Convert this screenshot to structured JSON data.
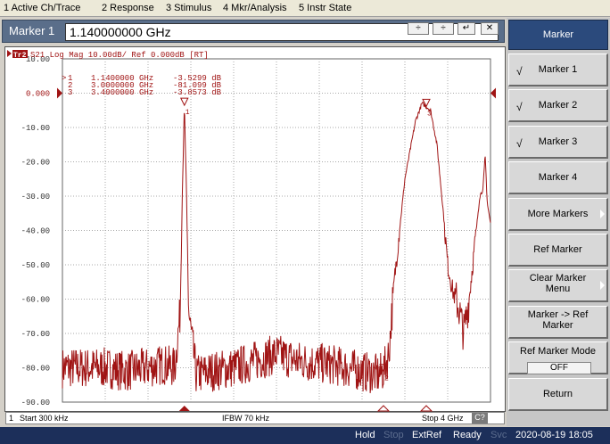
{
  "menu": [
    {
      "label": "1 Active Ch/Trace"
    },
    {
      "label": "2 Response"
    },
    {
      "label": "3 Stimulus"
    },
    {
      "label": "4 Mkr/Analysis"
    },
    {
      "label": "5 Instr State"
    }
  ],
  "entry": {
    "label": "Marker 1",
    "value": "1.140000000 GHz",
    "buttons": [
      "÷",
      "÷",
      "↵",
      "✕"
    ]
  },
  "trace": {
    "badge": "Tr2",
    "header": "S21 Log Mag 10.00dB/ Ref 0.000dB [RT]",
    "ref_label": "0.000"
  },
  "y_ticks": [
    "10.00",
    "0.000",
    "-10.00",
    "-20.00",
    "-30.00",
    "-40.00",
    "-50.00",
    "-60.00",
    "-70.00",
    "-80.00",
    "-90.00"
  ],
  "markers": [
    {
      "id": "1",
      "active": true,
      "freq": "1.1400000 GHz",
      "value": "-3.5299 dB"
    },
    {
      "id": "2",
      "active": false,
      "freq": "3.0000000 GHz",
      "value": "-81.099 dB"
    },
    {
      "id": "3",
      "active": false,
      "freq": "3.4000000 GHz",
      "value": "-3.8573 dB"
    }
  ],
  "footer": {
    "channel": "1",
    "start": "Start 300 kHz",
    "ifbw": "IFBW 70 kHz",
    "stop": "Stop 4 GHz",
    "badge": "C?"
  },
  "softkeys": {
    "title": "Marker",
    "items": [
      {
        "label": "Marker 1",
        "checked": true
      },
      {
        "label": "Marker 2",
        "checked": true
      },
      {
        "label": "Marker 3",
        "checked": true
      },
      {
        "label": "Marker 4",
        "checked": false
      },
      {
        "label": "More Markers",
        "submenu": true
      },
      {
        "label": "Ref Marker"
      },
      {
        "label": "Clear Marker Menu",
        "submenu": true
      },
      {
        "label": "Marker -> Ref Marker"
      },
      {
        "label": "Ref Marker Mode",
        "state": "OFF"
      },
      {
        "label": "Return"
      }
    ]
  },
  "status": {
    "items": [
      {
        "text": "Hold",
        "color": "#ffffff"
      },
      {
        "text": "Stop",
        "color": "#5c6d8e"
      },
      {
        "text": "ExtRef",
        "color": "#ffffff"
      },
      {
        "text": "Ready",
        "color": "#ffffff"
      },
      {
        "text": "Svc",
        "color": "#5c6d8e"
      }
    ],
    "datetime": "2020-08-19 18:05"
  },
  "colors": {
    "trace": "#a01414",
    "grid": "#aaaaaa",
    "marker_text": "#a01414",
    "softkey_title_bg": "#2b4a7c",
    "status_bg": "#1c2f5a"
  },
  "chart_data": {
    "type": "line",
    "title": "S21 Log Mag 10.00dB/ Ref 0.000dB [RT]",
    "xlabel": "",
    "ylabel": "",
    "x_unit": "GHz",
    "y_unit": "dB",
    "xlim": [
      0.0003,
      4.0
    ],
    "ylim": [
      -90,
      10
    ],
    "grid": true,
    "reference_level": 0,
    "series": [
      {
        "name": "",
        "x": [
          0.0003,
          0.2,
          0.4,
          0.6,
          0.8,
          0.95,
          1.05,
          1.1,
          1.12,
          1.14,
          1.16,
          1.18,
          1.25,
          1.4,
          1.6,
          1.8,
          2.0,
          2.2,
          2.5,
          2.8,
          2.95,
          3.0,
          3.05,
          3.1,
          3.2,
          3.3,
          3.36,
          3.4,
          3.44,
          3.5,
          3.56,
          3.6,
          3.65,
          3.7,
          3.75,
          3.8,
          3.85,
          3.9,
          3.93,
          3.95,
          3.97,
          4.0
        ],
        "y": [
          -80,
          -80,
          -80,
          -81,
          -80,
          -79,
          -80,
          -64,
          -30,
          -3.5,
          -30,
          -64,
          -82,
          -81,
          -80,
          -78,
          -76,
          -78,
          -79,
          -81,
          -82,
          -81,
          -76,
          -55,
          -25,
          -8,
          -3,
          -3.9,
          -5,
          -15,
          -35,
          -50,
          -58,
          -62,
          -70,
          -60,
          -45,
          -30,
          -28,
          -18,
          -32,
          -38
        ]
      }
    ]
  }
}
